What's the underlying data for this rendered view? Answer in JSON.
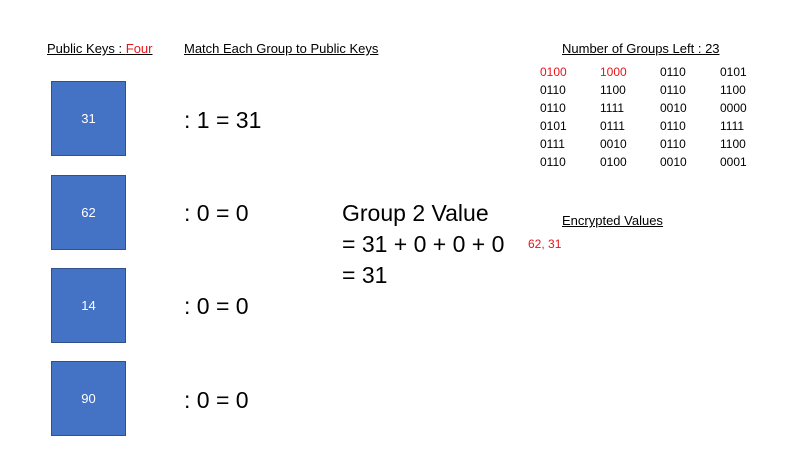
{
  "header": {
    "public_keys_label": "Public Keys : ",
    "public_keys_count": "Four",
    "match_label": "Match Each Group to Public Keys",
    "groups_left_label": "Number of Groups Left : 23",
    "encrypted_label": "Encrypted Values"
  },
  "keys": [
    {
      "value": "31",
      "equation": ": 1 = 31"
    },
    {
      "value": "62",
      "equation": ": 0 = 0"
    },
    {
      "value": "14",
      "equation": ": 0 = 0"
    },
    {
      "value": "90",
      "equation": ": 0 = 0"
    }
  ],
  "group_value": {
    "title": "Group 2 Value",
    "sum": "= 31 + 0 + 0 + 0",
    "result": "= 31"
  },
  "encrypted_values": "62, 31",
  "bit_groups": [
    [
      "0100",
      "1000",
      "0110",
      "0101"
    ],
    [
      "0110",
      "1100",
      "0110",
      "1100"
    ],
    [
      "0110",
      "1111",
      "0010",
      "0000"
    ],
    [
      "0101",
      "0111",
      "0110",
      "1111"
    ],
    [
      "0111",
      "0010",
      "0110",
      "1100"
    ],
    [
      "0110",
      "0100",
      "0010",
      "0001"
    ]
  ],
  "highlighted_groups": [
    [
      0,
      0
    ],
    [
      0,
      1
    ]
  ],
  "colors": {
    "box_fill": "#4472c4",
    "box_border": "#2f528f",
    "highlight": "#e8141b"
  }
}
